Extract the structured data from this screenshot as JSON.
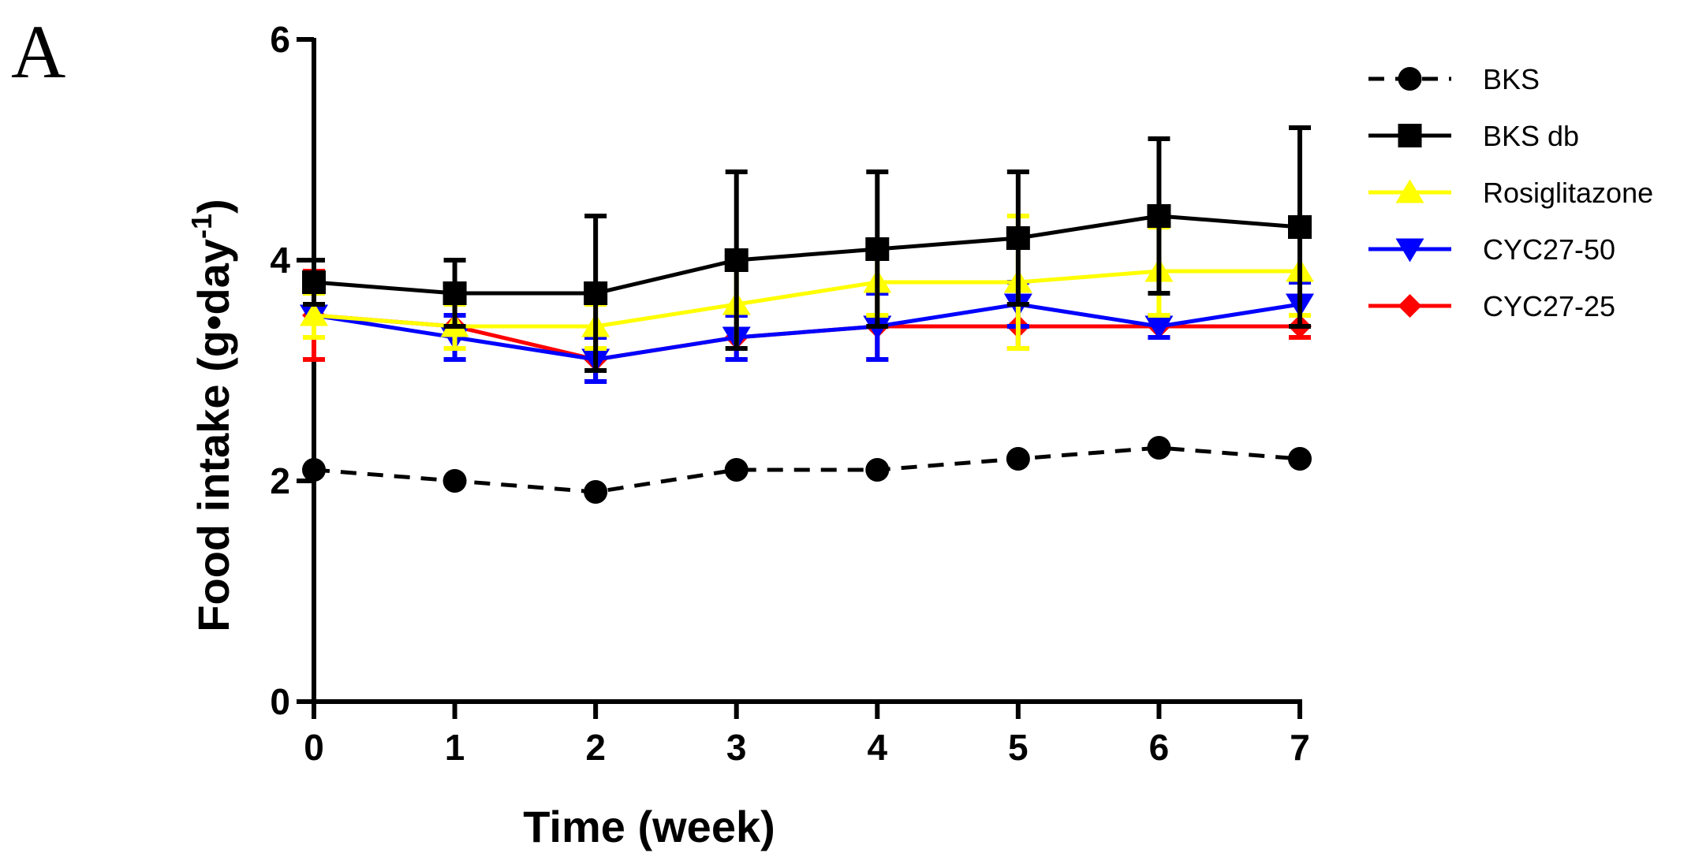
{
  "panel_label": "A",
  "chart_data": {
    "type": "line",
    "title": "",
    "xlabel": "Time (week)",
    "ylabel_main": "Food intake (g•day",
    "ylabel_sup": "-1",
    "ylabel_close": ")",
    "x": [
      0,
      1,
      2,
      3,
      4,
      5,
      6,
      7
    ],
    "xlim": [
      0,
      7
    ],
    "ylim": [
      0,
      6
    ],
    "x_ticks": [
      "0",
      "1",
      "2",
      "3",
      "4",
      "5",
      "6",
      "7"
    ],
    "y_ticks": [
      "0",
      "2",
      "4",
      "6"
    ],
    "legend_position": "right",
    "series": [
      {
        "name": "BKS",
        "color": "#000000",
        "marker": "circle",
        "dash": true,
        "values": [
          2.1,
          2.0,
          1.9,
          2.1,
          2.1,
          2.2,
          2.3,
          2.2
        ],
        "errors": [
          0,
          0,
          0,
          0,
          0,
          0,
          0,
          0
        ]
      },
      {
        "name": "BKS db",
        "color": "#000000",
        "marker": "square",
        "dash": false,
        "values": [
          3.8,
          3.7,
          3.7,
          4.0,
          4.1,
          4.2,
          4.4,
          4.3
        ],
        "errors": [
          0.2,
          0.3,
          0.7,
          0.8,
          0.7,
          0.6,
          0.7,
          0.9
        ]
      },
      {
        "name": "Rosiglitazone",
        "color": "#ffff00",
        "marker": "triangle-up",
        "dash": false,
        "values": [
          3.5,
          3.4,
          3.4,
          3.6,
          3.8,
          3.8,
          3.9,
          3.9
        ],
        "errors": [
          0.2,
          0.2,
          0.2,
          0.4,
          0.3,
          0.6,
          0.4,
          0.4
        ]
      },
      {
        "name": "CYC27-50",
        "color": "#0000ff",
        "marker": "triangle-down",
        "dash": false,
        "values": [
          3.5,
          3.3,
          3.1,
          3.3,
          3.4,
          3.6,
          3.4,
          3.6
        ],
        "errors": [
          0.2,
          0.2,
          0.2,
          0.2,
          0.3,
          0.2,
          0.1,
          0.2
        ]
      },
      {
        "name": "CYC27-25",
        "color": "#ff0000",
        "marker": "diamond",
        "dash": false,
        "values": [
          3.5,
          3.4,
          3.1,
          3.3,
          3.4,
          3.4,
          3.4,
          3.4
        ],
        "errors": [
          0.4,
          0.3,
          0.2,
          0.2,
          0.3,
          0.2,
          0.1,
          0.1
        ]
      }
    ]
  }
}
